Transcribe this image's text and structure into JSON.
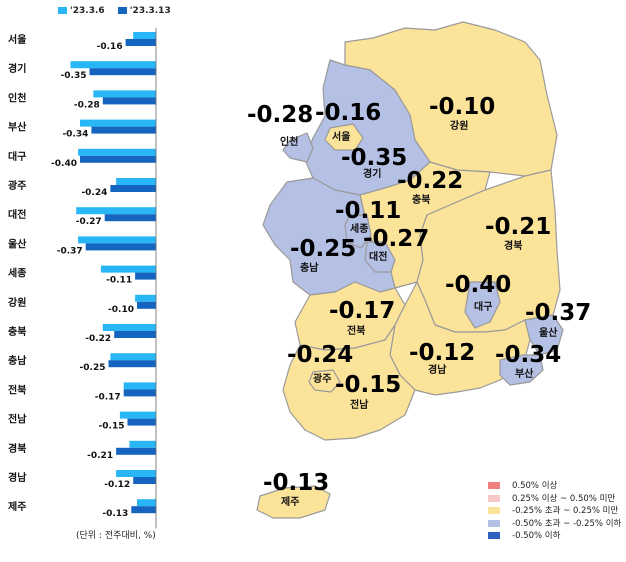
{
  "legend_top": [
    {
      "label": "'23.3.6",
      "color": "#29b6f6"
    },
    {
      "label": "'23.3.13",
      "color": "#1565c0"
    }
  ],
  "chart_data": {
    "type": "bar",
    "orientation": "horizontal",
    "categories": [
      "서울",
      "경기",
      "인천",
      "부산",
      "대구",
      "광주",
      "대전",
      "울산",
      "세종",
      "강원",
      "충북",
      "충남",
      "전북",
      "전남",
      "경북",
      "경남",
      "제주"
    ],
    "series": [
      {
        "name": "'23.3.6",
        "values": [
          -0.12,
          -0.45,
          -0.33,
          -0.4,
          -0.41,
          -0.21,
          -0.42,
          -0.41,
          -0.29,
          -0.11,
          -0.28,
          -0.24,
          -0.17,
          -0.19,
          -0.14,
          -0.21,
          -0.1
        ]
      },
      {
        "name": "'23.3.13",
        "values": [
          -0.16,
          -0.35,
          -0.28,
          -0.34,
          -0.4,
          -0.24,
          -0.27,
          -0.37,
          -0.11,
          -0.1,
          -0.22,
          -0.25,
          -0.17,
          -0.15,
          -0.21,
          -0.12,
          -0.13
        ]
      }
    ],
    "data_labels": [
      "-0.16",
      "-0.35",
      "-0.28",
      "-0.34",
      "-0.40",
      "-0.24",
      "-0.27",
      "-0.37",
      "-0.11",
      "-0.10",
      "-0.22",
      "-0.25",
      "-0.17",
      "-0.15",
      "-0.21",
      "-0.12",
      "-0.13"
    ]
  },
  "unit_note": "(단위 : 전주대비, %)",
  "colors": {
    "level_light_red": "#f08080",
    "level_pink": "#f8c8c8",
    "level_yellow": "#fce39a",
    "level_blue": "#b4c0e4",
    "level_dark_blue": "#3060c0",
    "border": "#999999"
  },
  "map": {
    "regions": [
      {
        "key": "incheon",
        "name": "인천",
        "value": "-0.28"
      },
      {
        "key": "seoul",
        "name": "서울",
        "value": "-0.16"
      },
      {
        "key": "gyeonggi",
        "name": "경기",
        "value": "-0.35"
      },
      {
        "key": "gangwon",
        "name": "강원",
        "value": "-0.10"
      },
      {
        "key": "chungbuk",
        "name": "충북",
        "value": "-0.22"
      },
      {
        "key": "sejong",
        "name": "세종",
        "value": "-0.11"
      },
      {
        "key": "daejeon",
        "name": "대전",
        "value": "-0.27"
      },
      {
        "key": "chungnam",
        "name": "충남",
        "value": "-0.25"
      },
      {
        "key": "gyeongbuk",
        "name": "경북",
        "value": "-0.21"
      },
      {
        "key": "daegu",
        "name": "대구",
        "value": "-0.40"
      },
      {
        "key": "ulsan",
        "name": "울산",
        "value": "-0.37"
      },
      {
        "key": "jeonbuk",
        "name": "전북",
        "value": "-0.17"
      },
      {
        "key": "gwangju",
        "name": "광주",
        "value": "-0.24"
      },
      {
        "key": "jeonnam",
        "name": "전남",
        "value": "-0.15"
      },
      {
        "key": "gyeongnam",
        "name": "경남",
        "value": "-0.12"
      },
      {
        "key": "busan",
        "name": "부산",
        "value": "-0.34"
      },
      {
        "key": "jeju",
        "name": "제주",
        "value": "-0.13"
      }
    ]
  },
  "legend": [
    {
      "label": "0.50% 이상",
      "color": "#f08080"
    },
    {
      "label": "0.25% 이상 ~ 0.50% 미만",
      "color": "#f8c8c8"
    },
    {
      "label": "-0.25% 초과 ~ 0.25% 미만",
      "color": "#fce39a"
    },
    {
      "label": "-0.50% 초과 ~ -0.25% 이하",
      "color": "#b4c0e4"
    },
    {
      "label": "-0.50% 이하",
      "color": "#3060c0"
    }
  ]
}
